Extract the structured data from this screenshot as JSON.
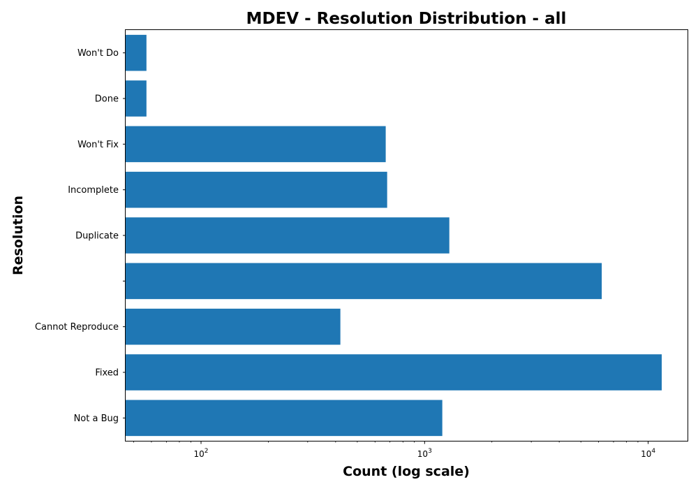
{
  "chart_data": {
    "type": "bar",
    "orientation": "horizontal",
    "title": "MDEV - Resolution Distribution - all",
    "xlabel": "Count (log scale)",
    "ylabel": "Resolution",
    "x_scale": "log",
    "xlim": [
      46,
      15000
    ],
    "x_ticks": [
      {
        "value": 100,
        "base": "10",
        "exp": "2"
      },
      {
        "value": 1000,
        "base": "10",
        "exp": "3"
      },
      {
        "value": 10000,
        "base": "10",
        "exp": "4"
      }
    ],
    "categories": [
      "Not a Bug",
      "Fixed",
      "Cannot Reproduce",
      "",
      "Duplicate",
      "Incomplete",
      "Won't Fix",
      "Done",
      "Won't Do"
    ],
    "values": [
      1200,
      11500,
      420,
      6200,
      1290,
      680,
      670,
      57,
      57
    ],
    "bar_color": "#1f77b4",
    "grid": false,
    "legend": "none"
  }
}
